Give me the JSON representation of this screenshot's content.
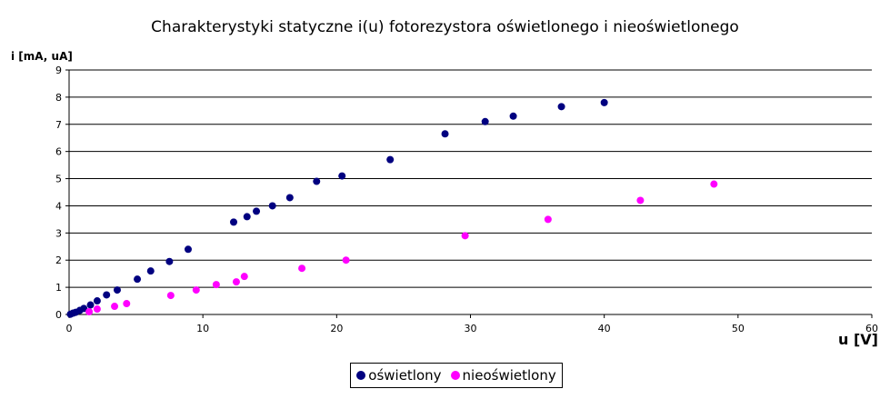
{
  "chart_data": {
    "type": "scatter",
    "title": "Charakterystyki statyczne i(u) fotorezystora oświetlonego i nieoświetlonego",
    "xlabel": "u [V]",
    "ylabel": "i [mA, uA]",
    "xlim": [
      0,
      60
    ],
    "ylim": [
      0,
      9
    ],
    "xticks": [
      "0",
      "10",
      "20",
      "30",
      "40",
      "50",
      "60"
    ],
    "yticks": [
      "0",
      "1",
      "2",
      "3",
      "4",
      "5",
      "6",
      "7",
      "8",
      "9"
    ],
    "grid": "horizontal",
    "legend_position": "bottom",
    "series": [
      {
        "name": "oświetlony",
        "color": "#000080",
        "points": [
          [
            0.1,
            0.01
          ],
          [
            0.3,
            0.05
          ],
          [
            0.5,
            0.08
          ],
          [
            0.8,
            0.15
          ],
          [
            1.1,
            0.22
          ],
          [
            1.6,
            0.35
          ],
          [
            2.1,
            0.5
          ],
          [
            2.8,
            0.72
          ],
          [
            3.6,
            0.9
          ],
          [
            5.1,
            1.3
          ],
          [
            6.1,
            1.6
          ],
          [
            7.5,
            1.95
          ],
          [
            8.9,
            2.4
          ],
          [
            12.3,
            3.4
          ],
          [
            13.3,
            3.6
          ],
          [
            14.0,
            3.8
          ],
          [
            15.2,
            4.0
          ],
          [
            16.5,
            4.3
          ],
          [
            18.5,
            4.9
          ],
          [
            20.4,
            5.1
          ],
          [
            24.0,
            5.7
          ],
          [
            28.1,
            6.65
          ],
          [
            31.1,
            7.1
          ],
          [
            33.2,
            7.3
          ],
          [
            36.8,
            7.65
          ],
          [
            40.0,
            7.8
          ]
        ]
      },
      {
        "name": "nieoświetlony",
        "color": "#ff00ff",
        "points": [
          [
            1.5,
            0.1
          ],
          [
            2.1,
            0.2
          ],
          [
            3.4,
            0.3
          ],
          [
            4.3,
            0.4
          ],
          [
            7.6,
            0.7
          ],
          [
            9.5,
            0.9
          ],
          [
            11.0,
            1.1
          ],
          [
            12.5,
            1.2
          ],
          [
            13.1,
            1.4
          ],
          [
            17.4,
            1.7
          ],
          [
            20.7,
            2.0
          ],
          [
            29.6,
            2.9
          ],
          [
            35.8,
            3.5
          ],
          [
            42.7,
            4.2
          ],
          [
            48.2,
            4.8
          ]
        ]
      }
    ]
  }
}
